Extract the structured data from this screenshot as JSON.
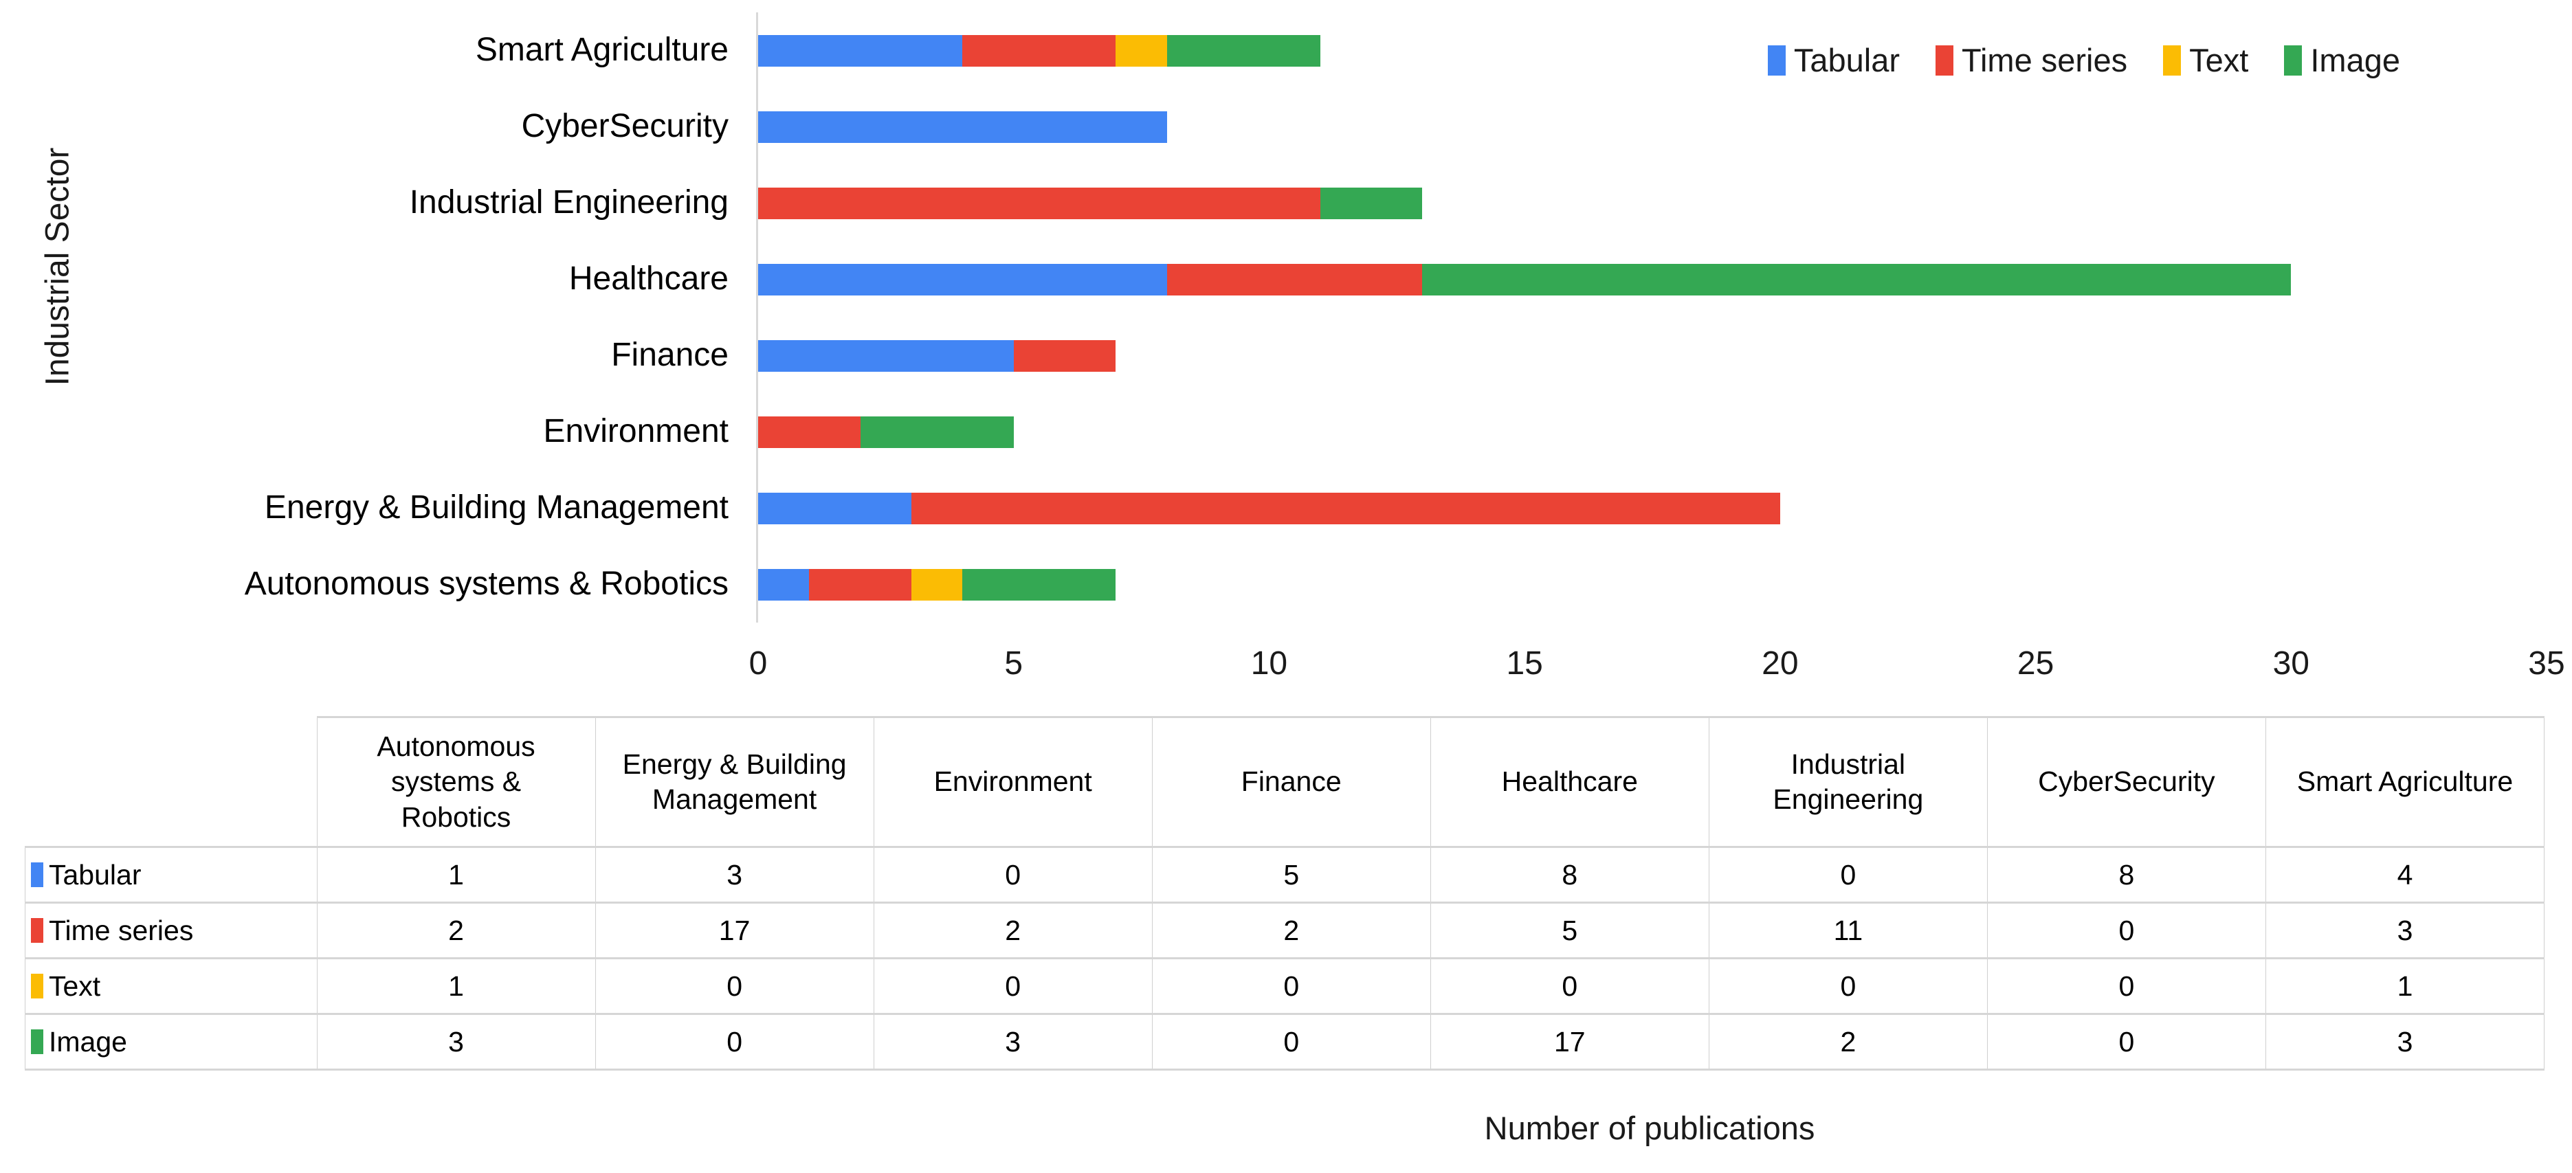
{
  "chart_data": {
    "type": "bar",
    "orientation": "horizontal",
    "stacked": true,
    "title": "",
    "xlabel": "Number of publications",
    "ylabel": "Industrial Sector",
    "xlim": [
      0,
      35
    ],
    "xticks": [
      0,
      5,
      10,
      15,
      20,
      25,
      30,
      35
    ],
    "grid": false,
    "legend_position": "top-right",
    "categories": [
      "Smart Agriculture",
      "CyberSecurity",
      "Industrial Engineering",
      "Healthcare",
      "Finance",
      "Environment",
      "Energy & Building Management",
      "Autonomous systems & Robotics"
    ],
    "series": [
      {
        "name": "Tabular",
        "color": "#4285F4",
        "values": [
          4,
          8,
          0,
          8,
          5,
          0,
          3,
          1
        ]
      },
      {
        "name": "Time series",
        "color": "#EA4335",
        "values": [
          3,
          0,
          11,
          5,
          2,
          2,
          17,
          2
        ]
      },
      {
        "name": "Text",
        "color": "#FBBC04",
        "values": [
          1,
          0,
          0,
          0,
          0,
          0,
          0,
          1
        ]
      },
      {
        "name": "Image",
        "color": "#34A853",
        "values": [
          3,
          0,
          2,
          17,
          0,
          3,
          0,
          3
        ]
      }
    ]
  },
  "table": {
    "columns": [
      "Autonomous systems & Robotics",
      "Energy & Building Management",
      "Environment",
      "Finance",
      "Healthcare",
      "Industrial Engineering",
      "CyberSecurity",
      "Smart Agriculture"
    ],
    "rows": [
      {
        "label": "Tabular",
        "color": "#4285F4",
        "values": [
          1,
          3,
          0,
          5,
          8,
          0,
          8,
          4
        ]
      },
      {
        "label": "Time series",
        "color": "#EA4335",
        "values": [
          2,
          17,
          2,
          2,
          5,
          11,
          0,
          3
        ]
      },
      {
        "label": "Text",
        "color": "#FBBC04",
        "values": [
          1,
          0,
          0,
          0,
          0,
          0,
          0,
          1
        ]
      },
      {
        "label": "Image",
        "color": "#34A853",
        "values": [
          3,
          0,
          3,
          0,
          17,
          2,
          0,
          3
        ]
      }
    ]
  },
  "colors": {
    "axis_line": "#d9d9d9",
    "table_border": "#cfcfcf",
    "text": "#000000"
  }
}
